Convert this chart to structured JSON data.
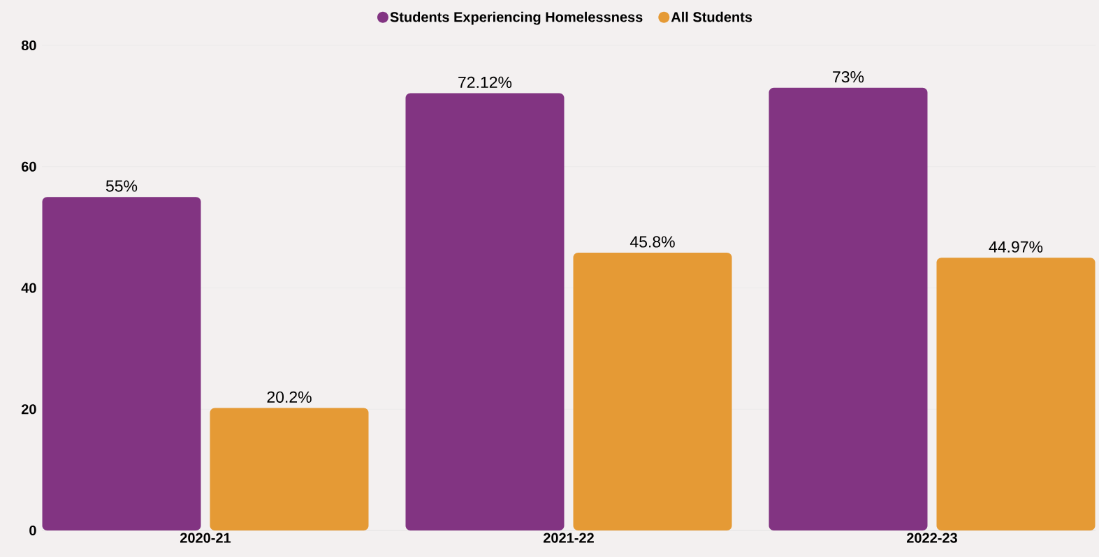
{
  "chart_data": {
    "type": "bar",
    "categories": [
      "2020-21",
      "2021-22",
      "2022-23"
    ],
    "series": [
      {
        "name": "Students Experiencing Homelessness",
        "color": "#823482",
        "values": [
          55,
          72.12,
          73
        ],
        "value_labels": [
          "55%",
          "72.12%",
          "73%"
        ]
      },
      {
        "name": "All Students",
        "color": "#e59a35",
        "values": [
          20.2,
          45.8,
          44.97
        ],
        "value_labels": [
          "20.2%",
          "45.8%",
          "44.97%"
        ]
      }
    ],
    "ylim": [
      0,
      80
    ],
    "yticks": [
      0,
      20,
      40,
      60,
      80
    ],
    "grid": "y",
    "legend": "top"
  }
}
